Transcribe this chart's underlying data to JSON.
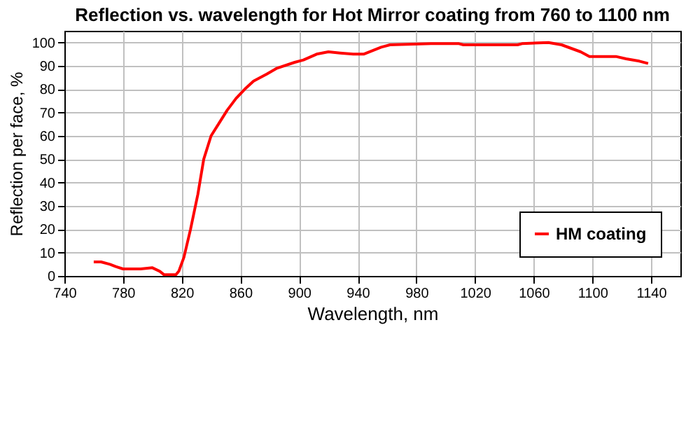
{
  "chart_data": {
    "type": "line",
    "title": "Reflection vs. wavelength for Hot Mirror coating from 760 to 1100 nm",
    "xlabel": "Wavelength, nm",
    "ylabel": "Reflection per face, %",
    "xlim": [
      740,
      1160
    ],
    "xticks": [
      740,
      780,
      820,
      860,
      900,
      940,
      980,
      1020,
      1060,
      1100,
      1140
    ],
    "ylim": [
      0,
      105
    ],
    "yticks": [
      0,
      10,
      20,
      30,
      40,
      50,
      60,
      70,
      80,
      90,
      100
    ],
    "grid": true,
    "legend": "bottom right",
    "marker": "none",
    "line_style": "solid",
    "series": [
      {
        "name": "HM coating",
        "color": "#ff0000",
        "x": [
          760,
          765,
          771,
          775,
          780,
          792,
          800,
          805,
          808,
          816,
          818,
          821.5,
          826,
          831,
          835,
          840,
          845,
          851,
          857,
          863,
          869,
          878,
          885,
          897,
          903,
          912,
          920,
          928,
          937,
          944,
          956,
          962,
          990,
          1009,
          1012,
          1049,
          1052,
          1070,
          1079,
          1092,
          1098,
          1116,
          1123,
          1132,
          1138
        ],
        "values": [
          6,
          6,
          5,
          4,
          3,
          3,
          3.5,
          2,
          0.5,
          0.5,
          2,
          8,
          20,
          35,
          50,
          60,
          65,
          71,
          76,
          80,
          83.5,
          86.5,
          89,
          91.5,
          92.5,
          95,
          96,
          95.5,
          95,
          95,
          98,
          99,
          99.5,
          99.5,
          99,
          99,
          99.5,
          100,
          99,
          96,
          94,
          94,
          93,
          92,
          91
        ]
      }
    ]
  }
}
